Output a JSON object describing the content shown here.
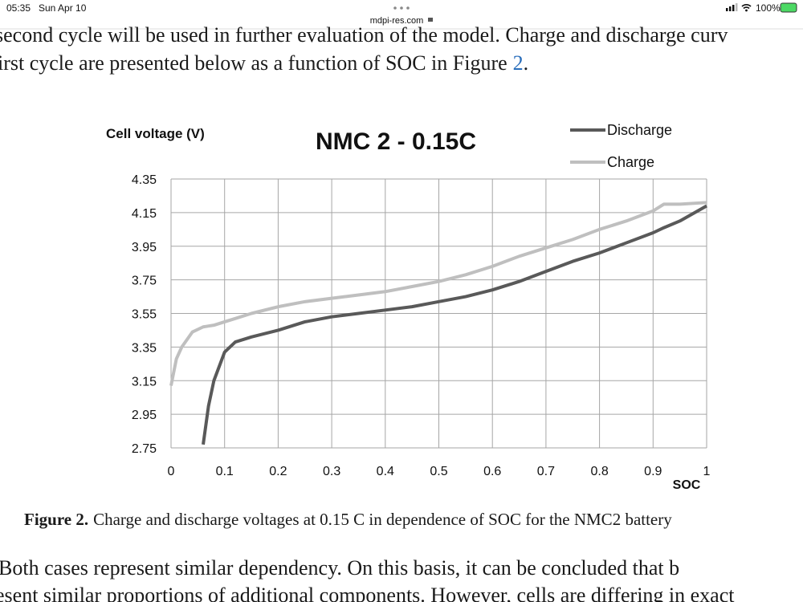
{
  "status_bar": {
    "time": "05:35",
    "date": "Sun Apr 10",
    "url": "mdpi-res.com",
    "battery": "100%"
  },
  "paragraph_top": {
    "line1": "second cycle will be used in further evaluation of the model. Charge and discharge curv",
    "line2": "irst cycle are presented below as a function of SOC in Figure",
    "figure_ref": "2",
    "line2_end": "."
  },
  "chart_data": {
    "type": "line",
    "title": "NMC 2 - 0.15C",
    "y_label": "Cell voltage  (V)",
    "x_label": "SOC",
    "x": [
      0,
      0.01,
      0.02,
      0.04,
      0.06,
      0.07,
      0.08,
      0.1,
      0.12,
      0.15,
      0.2,
      0.25,
      0.3,
      0.35,
      0.4,
      0.45,
      0.5,
      0.55,
      0.6,
      0.65,
      0.7,
      0.75,
      0.8,
      0.85,
      0.9,
      0.92,
      0.95,
      1
    ],
    "series": [
      {
        "name": "Discharge",
        "color": "#595959",
        "values": [
          null,
          null,
          null,
          null,
          2.77,
          3.0,
          3.15,
          3.32,
          3.38,
          3.41,
          3.45,
          3.5,
          3.53,
          3.55,
          3.57,
          3.59,
          3.62,
          3.65,
          3.69,
          3.74,
          3.8,
          3.86,
          3.91,
          3.97,
          4.03,
          4.06,
          4.1,
          4.19
        ]
      },
      {
        "name": "Charge",
        "color": "#bfbfbf",
        "values": [
          3.12,
          3.28,
          3.35,
          3.44,
          3.47,
          3.475,
          3.48,
          3.5,
          3.52,
          3.55,
          3.59,
          3.62,
          3.64,
          3.66,
          3.68,
          3.71,
          3.74,
          3.78,
          3.83,
          3.89,
          3.94,
          3.99,
          4.05,
          4.1,
          4.16,
          4.2,
          4.2,
          4.21
        ]
      }
    ],
    "xlim": [
      0,
      1
    ],
    "xticks": [
      0,
      0.1,
      0.2,
      0.3,
      0.4,
      0.5,
      0.6,
      0.7,
      0.8,
      0.9,
      1
    ],
    "ylim": [
      2.75,
      4.35
    ],
    "yticks": [
      2.75,
      2.95,
      3.15,
      3.35,
      3.55,
      3.75,
      3.95,
      4.15,
      4.35
    ],
    "grid": true,
    "legend": "top-right"
  },
  "caption": {
    "label": "Figure 2.",
    "text": "Charge and discharge voltages at 0.15 C in dependence of SOC for the NMC2 battery"
  },
  "paragraph_bottom": {
    "line1": "Both cases represent similar dependency.  On this basis, it can be concluded that b",
    "line2": "esent similar proportions of additional components. However, cells are differing in exact"
  }
}
